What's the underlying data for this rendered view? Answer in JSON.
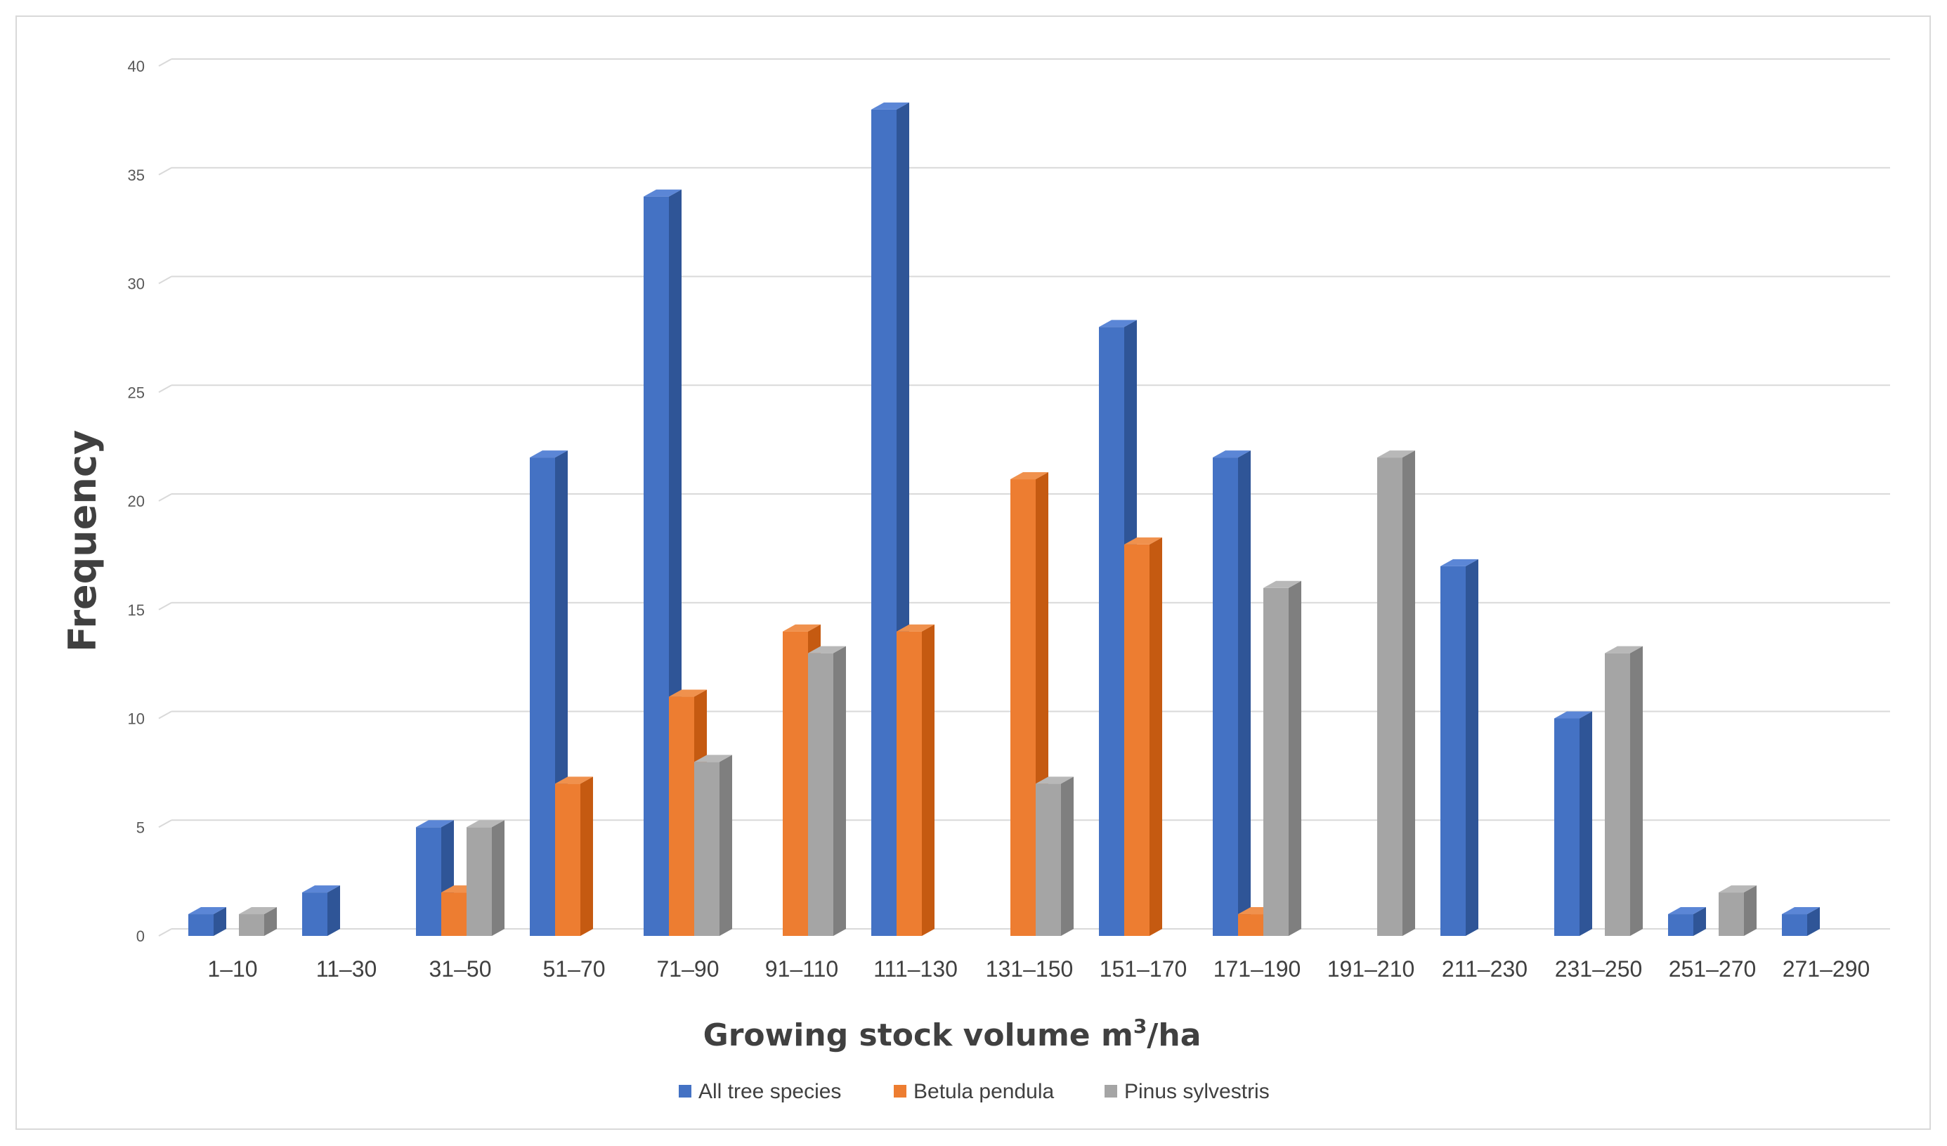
{
  "chart_data": {
    "type": "bar",
    "style": "3d-clustered-column",
    "categories": [
      "1–10",
      "11–30",
      "31–50",
      "51–70",
      "71–90",
      "91–110",
      "111–130",
      "131–150",
      "151–170",
      "171–190",
      "191–210",
      "211–230",
      "231–250",
      "251–270",
      "271–290"
    ],
    "series": [
      {
        "name": "All tree species",
        "color": "#4472c4",
        "side": "#2f5597",
        "top": "#5b86d6",
        "values": [
          1,
          2,
          5,
          22,
          34,
          0,
          38,
          0,
          28,
          22,
          0,
          17,
          10,
          1,
          1
        ]
      },
      {
        "name": "Betula pendula",
        "color": "#ed7d31",
        "side": "#c55a11",
        "top": "#f0914d",
        "values": [
          0,
          0,
          2,
          7,
          11,
          14,
          14,
          21,
          18,
          1,
          0,
          0,
          0,
          0,
          0
        ]
      },
      {
        "name": "Pinus sylvestris",
        "color": "#a5a5a5",
        "side": "#7f7f7f",
        "top": "#b8b8b8",
        "values": [
          1,
          0,
          5,
          0,
          8,
          13,
          0,
          7,
          0,
          16,
          22,
          0,
          13,
          2,
          0
        ]
      }
    ],
    "y_ticks": [
      0,
      5,
      10,
      15,
      20,
      25,
      30,
      35,
      40
    ],
    "ylim": [
      0,
      40
    ],
    "xlabel_main": "Growing stock volume m",
    "xlabel_sup": "3",
    "xlabel_tail": "/ha",
    "ylabel": "Frequency",
    "grid": true,
    "legend_position": "bottom"
  }
}
